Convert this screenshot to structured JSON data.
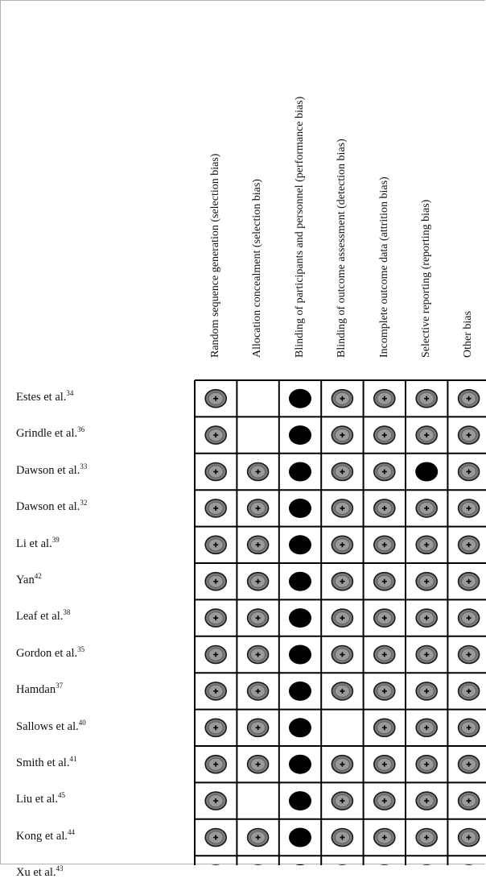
{
  "chart_data": {
    "type": "table",
    "columns": [
      "Random sequence generation (selection bias)",
      "Allocation concealment (selection bias)",
      "Blinding of participants and personnel (performance bias)",
      "Blinding of outcome assessment (detection bias)",
      "Incomplete outcome data (attrition bias)",
      "Selective reporting (reporting bias)",
      "Other bias"
    ],
    "rows": [
      {
        "label": "Estes et al.",
        "ref": "34",
        "values": [
          "low",
          "unclear",
          "high",
          "low",
          "low",
          "low",
          "low"
        ]
      },
      {
        "label": "Grindle et al.",
        "ref": "36",
        "values": [
          "low",
          "unclear",
          "high",
          "low",
          "low",
          "low",
          "low"
        ]
      },
      {
        "label": "Dawson et al.",
        "ref": "33",
        "values": [
          "low",
          "low",
          "high",
          "low",
          "low",
          "high",
          "low"
        ]
      },
      {
        "label": "Dawson et al.",
        "ref": "32",
        "values": [
          "low",
          "low",
          "high",
          "low",
          "low",
          "low",
          "low"
        ]
      },
      {
        "label": "Li et al.",
        "ref": "39",
        "values": [
          "low",
          "low",
          "high",
          "low",
          "low",
          "low",
          "low"
        ]
      },
      {
        "label": "Yan",
        "ref": "42",
        "values": [
          "low",
          "low",
          "high",
          "low",
          "low",
          "low",
          "low"
        ]
      },
      {
        "label": "Leaf et al.",
        "ref": "38",
        "values": [
          "low",
          "low",
          "high",
          "low",
          "low",
          "low",
          "low"
        ]
      },
      {
        "label": "Gordon et al.",
        "ref": "35",
        "values": [
          "low",
          "low",
          "high",
          "low",
          "low",
          "low",
          "low"
        ]
      },
      {
        "label": "Hamdan",
        "ref": "37",
        "values": [
          "low",
          "low",
          "high",
          "low",
          "low",
          "low",
          "low"
        ]
      },
      {
        "label": "Sallows et al.",
        "ref": "40",
        "values": [
          "low",
          "low",
          "high",
          "unclear",
          "low",
          "low",
          "low"
        ]
      },
      {
        "label": "Smith et al.",
        "ref": "41",
        "values": [
          "low",
          "low",
          "high",
          "low",
          "low",
          "low",
          "low"
        ]
      },
      {
        "label": "Liu et al.",
        "ref": "45",
        "values": [
          "low",
          "unclear",
          "high",
          "low",
          "low",
          "low",
          "low"
        ]
      },
      {
        "label": "Kong et al.",
        "ref": "44",
        "values": [
          "low",
          "low",
          "high",
          "low",
          "low",
          "low",
          "low"
        ]
      },
      {
        "label": "Xu et al.",
        "ref": "43",
        "values": [
          "low",
          "low",
          "high",
          "low",
          "low",
          "low",
          "low"
        ]
      }
    ],
    "colors": {
      "low": "#7a7a7a",
      "high": "#000000",
      "unclear": "#ffffff",
      "border": "#000000"
    }
  }
}
